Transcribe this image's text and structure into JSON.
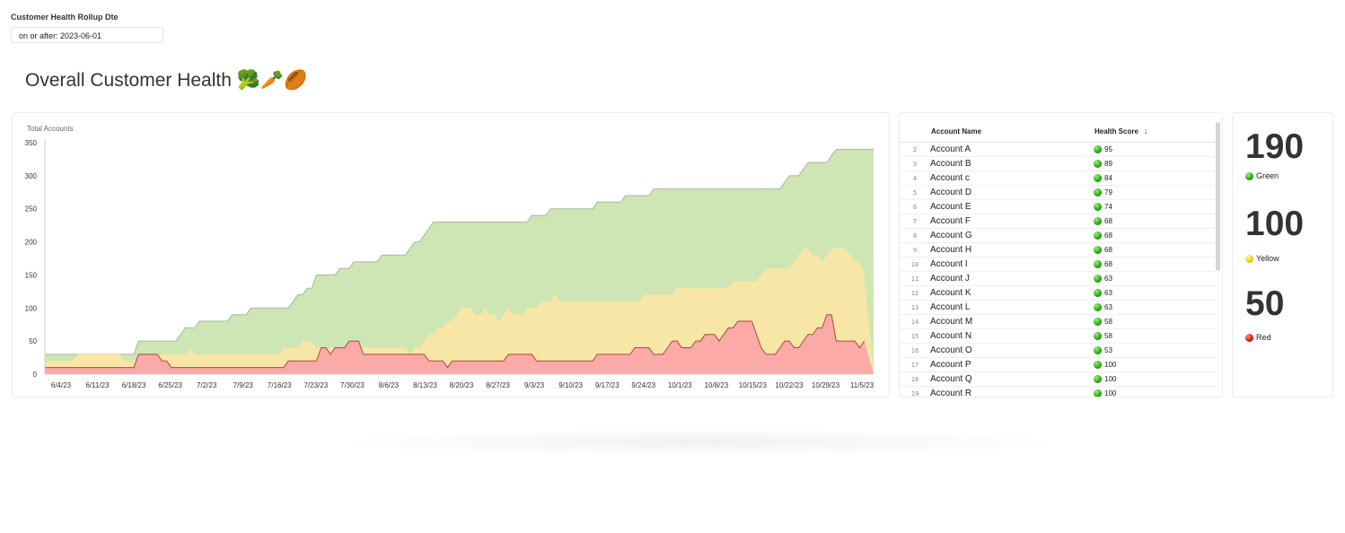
{
  "filter": {
    "label": "Customer Health Rollup Dte",
    "value": "on or after: 2023-06-01"
  },
  "page_title": "Overall Customer Health 🥦🥕🏉",
  "chart_data": {
    "type": "area",
    "ylabel": "Total Accounts",
    "ylim": [
      0,
      350
    ],
    "y_ticks": [
      0,
      50,
      100,
      150,
      200,
      250,
      300,
      350
    ],
    "x_tick_labels": [
      "6/4/23",
      "6/11/23",
      "6/18/23",
      "6/25/23",
      "7/2/23",
      "7/9/23",
      "7/16/23",
      "7/23/23",
      "7/30/23",
      "8/6/23",
      "8/13/23",
      "8/20/23",
      "8/27/23",
      "9/3/23",
      "9/10/23",
      "9/17/23",
      "9/24/23",
      "10/1/23",
      "10/8/23",
      "10/15/23",
      "10/22/23",
      "10/29/23",
      "11/5/23"
    ],
    "colors": {
      "green": "#cde6b4",
      "yellow": "#f8e6a6",
      "red": "#fcaaa8",
      "red_line": "#a84a3a",
      "total_line": "#aab59f"
    },
    "series_total": [
      30,
      30,
      30,
      30,
      30,
      30,
      30,
      30,
      30,
      30,
      30,
      30,
      30,
      30,
      30,
      30,
      30,
      30,
      30,
      30,
      50,
      50,
      50,
      50,
      50,
      50,
      50,
      50,
      50,
      60,
      70,
      70,
      70,
      80,
      80,
      80,
      80,
      80,
      80,
      80,
      90,
      90,
      90,
      90,
      100,
      100,
      100,
      100,
      100,
      100,
      100,
      100,
      100,
      110,
      120,
      120,
      130,
      130,
      150,
      150,
      150,
      150,
      150,
      160,
      160,
      160,
      170,
      170,
      170,
      170,
      170,
      170,
      180,
      180,
      180,
      180,
      180,
      180,
      190,
      200,
      200,
      210,
      220,
      230,
      230,
      230,
      230,
      230,
      230,
      230,
      230,
      230,
      230,
      230,
      230,
      230,
      230,
      230,
      230,
      230,
      230,
      230,
      230,
      230,
      240,
      240,
      240,
      240,
      250,
      250,
      250,
      250,
      250,
      250,
      250,
      250,
      250,
      250,
      260,
      260,
      260,
      260,
      260,
      260,
      270,
      270,
      270,
      270,
      270,
      270,
      280,
      280,
      280,
      280,
      280,
      280,
      280,
      280,
      280,
      280,
      280,
      280,
      280,
      280,
      280,
      280,
      280,
      280,
      280,
      280,
      280,
      280,
      280,
      280,
      280,
      280,
      280,
      280,
      290,
      300,
      300,
      300,
      310,
      320,
      320,
      320,
      320,
      320,
      330,
      340,
      340,
      340,
      340,
      340,
      340,
      340,
      340,
      340
    ],
    "series_yellow_top": [
      20,
      20,
      20,
      20,
      20,
      20,
      20,
      30,
      30,
      30,
      30,
      30,
      30,
      30,
      30,
      30,
      30,
      20,
      20,
      20,
      30,
      30,
      30,
      30,
      30,
      30,
      30,
      30,
      30,
      30,
      30,
      40,
      30,
      30,
      30,
      30,
      30,
      30,
      30,
      30,
      30,
      30,
      30,
      30,
      30,
      30,
      30,
      30,
      30,
      30,
      30,
      40,
      40,
      40,
      40,
      50,
      50,
      50,
      40,
      40,
      40,
      40,
      40,
      40,
      40,
      40,
      40,
      40,
      40,
      40,
      40,
      40,
      40,
      40,
      40,
      40,
      40,
      40,
      30,
      40,
      40,
      50,
      60,
      60,
      70,
      70,
      80,
      80,
      90,
      100,
      100,
      100,
      90,
      90,
      100,
      90,
      90,
      80,
      90,
      100,
      90,
      90,
      90,
      100,
      100,
      100,
      110,
      110,
      110,
      120,
      110,
      110,
      110,
      110,
      110,
      110,
      110,
      110,
      110,
      110,
      110,
      110,
      110,
      110,
      110,
      110,
      110,
      110,
      120,
      120,
      120,
      120,
      120,
      120,
      120,
      130,
      130,
      130,
      130,
      130,
      130,
      130,
      130,
      130,
      130,
      130,
      130,
      140,
      140,
      140,
      140,
      140,
      140,
      150,
      160,
      160,
      160,
      160,
      160,
      160,
      170,
      180,
      190,
      190,
      180,
      180,
      170,
      180,
      190,
      190,
      190,
      190,
      180,
      170,
      170,
      150
    ],
    "series_red_top": [
      10,
      10,
      10,
      10,
      10,
      10,
      10,
      10,
      10,
      10,
      10,
      10,
      10,
      10,
      10,
      10,
      10,
      10,
      10,
      10,
      30,
      30,
      30,
      30,
      30,
      20,
      20,
      10,
      10,
      10,
      10,
      10,
      10,
      10,
      10,
      10,
      10,
      10,
      10,
      10,
      10,
      10,
      10,
      10,
      10,
      10,
      10,
      10,
      10,
      10,
      10,
      10,
      20,
      20,
      20,
      20,
      20,
      20,
      20,
      40,
      40,
      30,
      40,
      40,
      40,
      50,
      50,
      50,
      30,
      30,
      30,
      30,
      30,
      30,
      30,
      30,
      30,
      30,
      30,
      30,
      30,
      30,
      20,
      20,
      20,
      20,
      10,
      20,
      20,
      20,
      20,
      20,
      20,
      20,
      20,
      20,
      20,
      20,
      20,
      30,
      30,
      30,
      30,
      30,
      30,
      20,
      20,
      20,
      20,
      20,
      20,
      20,
      20,
      20,
      20,
      20,
      20,
      20,
      30,
      30,
      30,
      30,
      30,
      30,
      30,
      30,
      40,
      40,
      40,
      40,
      30,
      30,
      30,
      40,
      50,
      50,
      40,
      40,
      40,
      50,
      50,
      60,
      60,
      60,
      50,
      60,
      70,
      70,
      80,
      80,
      80,
      80,
      60,
      40,
      30,
      30,
      30,
      40,
      50,
      50,
      40,
      40,
      50,
      60,
      60,
      70,
      70,
      90,
      90,
      50,
      50,
      50,
      50,
      50,
      40,
      50
    ]
  },
  "table": {
    "columns": {
      "account_name": "Account Name",
      "health_score": "Health Score"
    },
    "rows": [
      {
        "num": "2",
        "name": "Account A",
        "score": "95",
        "status": "green"
      },
      {
        "num": "3",
        "name": "Account B",
        "score": "89",
        "status": "green"
      },
      {
        "num": "4",
        "name": "Account c",
        "score": "84",
        "status": "green"
      },
      {
        "num": "5",
        "name": "Account D",
        "score": "79",
        "status": "green"
      },
      {
        "num": "6",
        "name": "Account E",
        "score": "74",
        "status": "green"
      },
      {
        "num": "7",
        "name": "Account F",
        "score": "68",
        "status": "green"
      },
      {
        "num": "8",
        "name": "Account G",
        "score": "68",
        "status": "green"
      },
      {
        "num": "9",
        "name": "Account H",
        "score": "68",
        "status": "green"
      },
      {
        "num": "10",
        "name": "Account I",
        "score": "68",
        "status": "green"
      },
      {
        "num": "11",
        "name": "Account J",
        "score": "63",
        "status": "green"
      },
      {
        "num": "12",
        "name": "Account K",
        "score": "63",
        "status": "green"
      },
      {
        "num": "13",
        "name": "Account L",
        "score": "63",
        "status": "green"
      },
      {
        "num": "14",
        "name": "Account M",
        "score": "58",
        "status": "green"
      },
      {
        "num": "15",
        "name": "Account N",
        "score": "58",
        "status": "green"
      },
      {
        "num": "16",
        "name": "Account O",
        "score": "53",
        "status": "green"
      },
      {
        "num": "17",
        "name": "Account P",
        "score": "100",
        "status": "green"
      },
      {
        "num": "18",
        "name": "Account Q",
        "score": "100",
        "status": "green"
      },
      {
        "num": "19",
        "name": "Account R",
        "score": "100",
        "status": "green"
      }
    ]
  },
  "kpis": [
    {
      "value": "190",
      "label": "Green",
      "status": "green"
    },
    {
      "value": "100",
      "label": "Yellow",
      "status": "yellow"
    },
    {
      "value": "50",
      "label": "Red",
      "status": "red"
    }
  ]
}
